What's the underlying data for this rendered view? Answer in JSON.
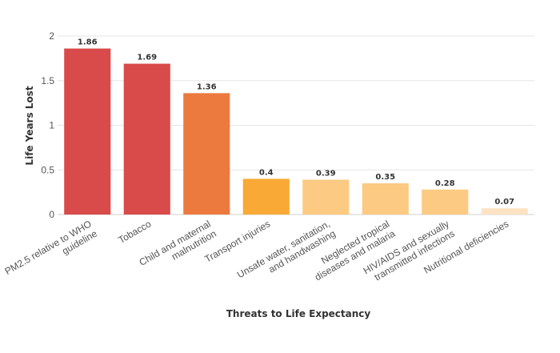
{
  "chart_data": {
    "type": "bar",
    "categories": [
      [
        "PM2.5 relative to WHO",
        "guideline"
      ],
      [
        "Tobacco"
      ],
      [
        "Child and maternal",
        "malnutrition"
      ],
      [
        "Transport injuries"
      ],
      [
        "Unsafe water, sanitation,",
        "and handwashing"
      ],
      [
        "Neglected tropical",
        "diseases and malaria"
      ],
      [
        "HIV/AIDS and sexually",
        "transmitted infections"
      ],
      [
        "Nutritional deficiencies"
      ]
    ],
    "values": [
      1.86,
      1.69,
      1.36,
      0.4,
      0.39,
      0.35,
      0.28,
      0.07
    ],
    "value_labels": [
      "1.86",
      "1.69",
      "1.36",
      "0.4",
      "0.39",
      "0.35",
      "0.28",
      "0.07"
    ],
    "colors": [
      "#d94a4b",
      "#d94a4b",
      "#ec7a3e",
      "#f9a935",
      "#fcca82",
      "#fcca82",
      "#fcca82",
      "#fde3c4"
    ],
    "xlabel": "Threats to Life Expectancy",
    "ylabel": "Life Years Lost",
    "ylim": [
      0,
      2
    ],
    "yticks": [
      {
        "value": 0,
        "label": "0"
      },
      {
        "value": 0.5,
        "label": "0.5"
      },
      {
        "value": 1,
        "label": "1"
      },
      {
        "value": 1.5,
        "label": "1.5"
      },
      {
        "value": 2,
        "label": "2"
      }
    ],
    "grid": true,
    "legend": "none"
  }
}
